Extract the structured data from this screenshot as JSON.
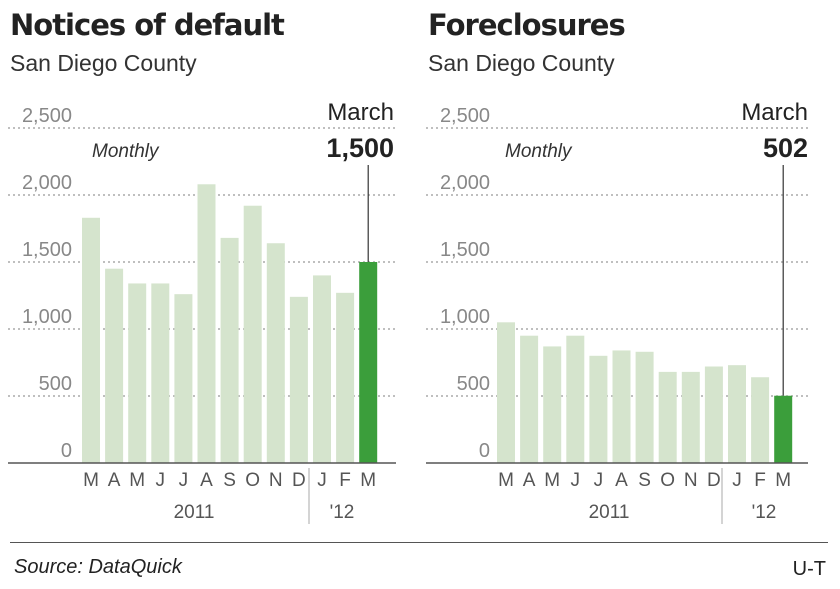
{
  "charts": [
    {
      "title": "Notices of default",
      "subtitle": "San Diego County",
      "note": "Monthly",
      "callout_label": "March",
      "callout_value": "1,500"
    },
    {
      "title": "Foreclosures",
      "subtitle": "San Diego County",
      "note": "Monthly",
      "callout_label": "March",
      "callout_value": "502"
    }
  ],
  "footer": {
    "source": "Source: DataQuick",
    "credit": "U-T"
  },
  "colors": {
    "bar": "#d5e4cd",
    "highlight": "#3b9e3b",
    "grid": "#999999",
    "axis": "#555555",
    "tick": "#888888"
  },
  "chart_data": [
    {
      "type": "bar",
      "title": "Notices of default",
      "subtitle": "San Diego County",
      "categories": [
        "M",
        "A",
        "M",
        "J",
        "J",
        "A",
        "S",
        "O",
        "N",
        "D",
        "J",
        "F",
        "M"
      ],
      "year_labels": [
        "2011",
        "'12"
      ],
      "values": [
        1830,
        1450,
        1340,
        1340,
        1260,
        2080,
        1680,
        1920,
        1640,
        1240,
        1400,
        1270,
        1500
      ],
      "highlight_index": 12,
      "yticks": [
        "0",
        "500",
        "1,000",
        "1,500",
        "2,000",
        "2,500"
      ],
      "ylim": [
        0,
        2500
      ],
      "grid": true
    },
    {
      "type": "bar",
      "title": "Foreclosures",
      "subtitle": "San Diego County",
      "categories": [
        "M",
        "A",
        "M",
        "J",
        "J",
        "A",
        "S",
        "O",
        "N",
        "D",
        "J",
        "F",
        "M"
      ],
      "year_labels": [
        "2011",
        "'12"
      ],
      "values": [
        1050,
        950,
        870,
        950,
        800,
        840,
        830,
        680,
        680,
        720,
        730,
        640,
        502
      ],
      "highlight_index": 12,
      "yticks": [
        "0",
        "500",
        "1,000",
        "1,500",
        "2,000",
        "2,500"
      ],
      "ylim": [
        0,
        2500
      ],
      "grid": true
    }
  ]
}
